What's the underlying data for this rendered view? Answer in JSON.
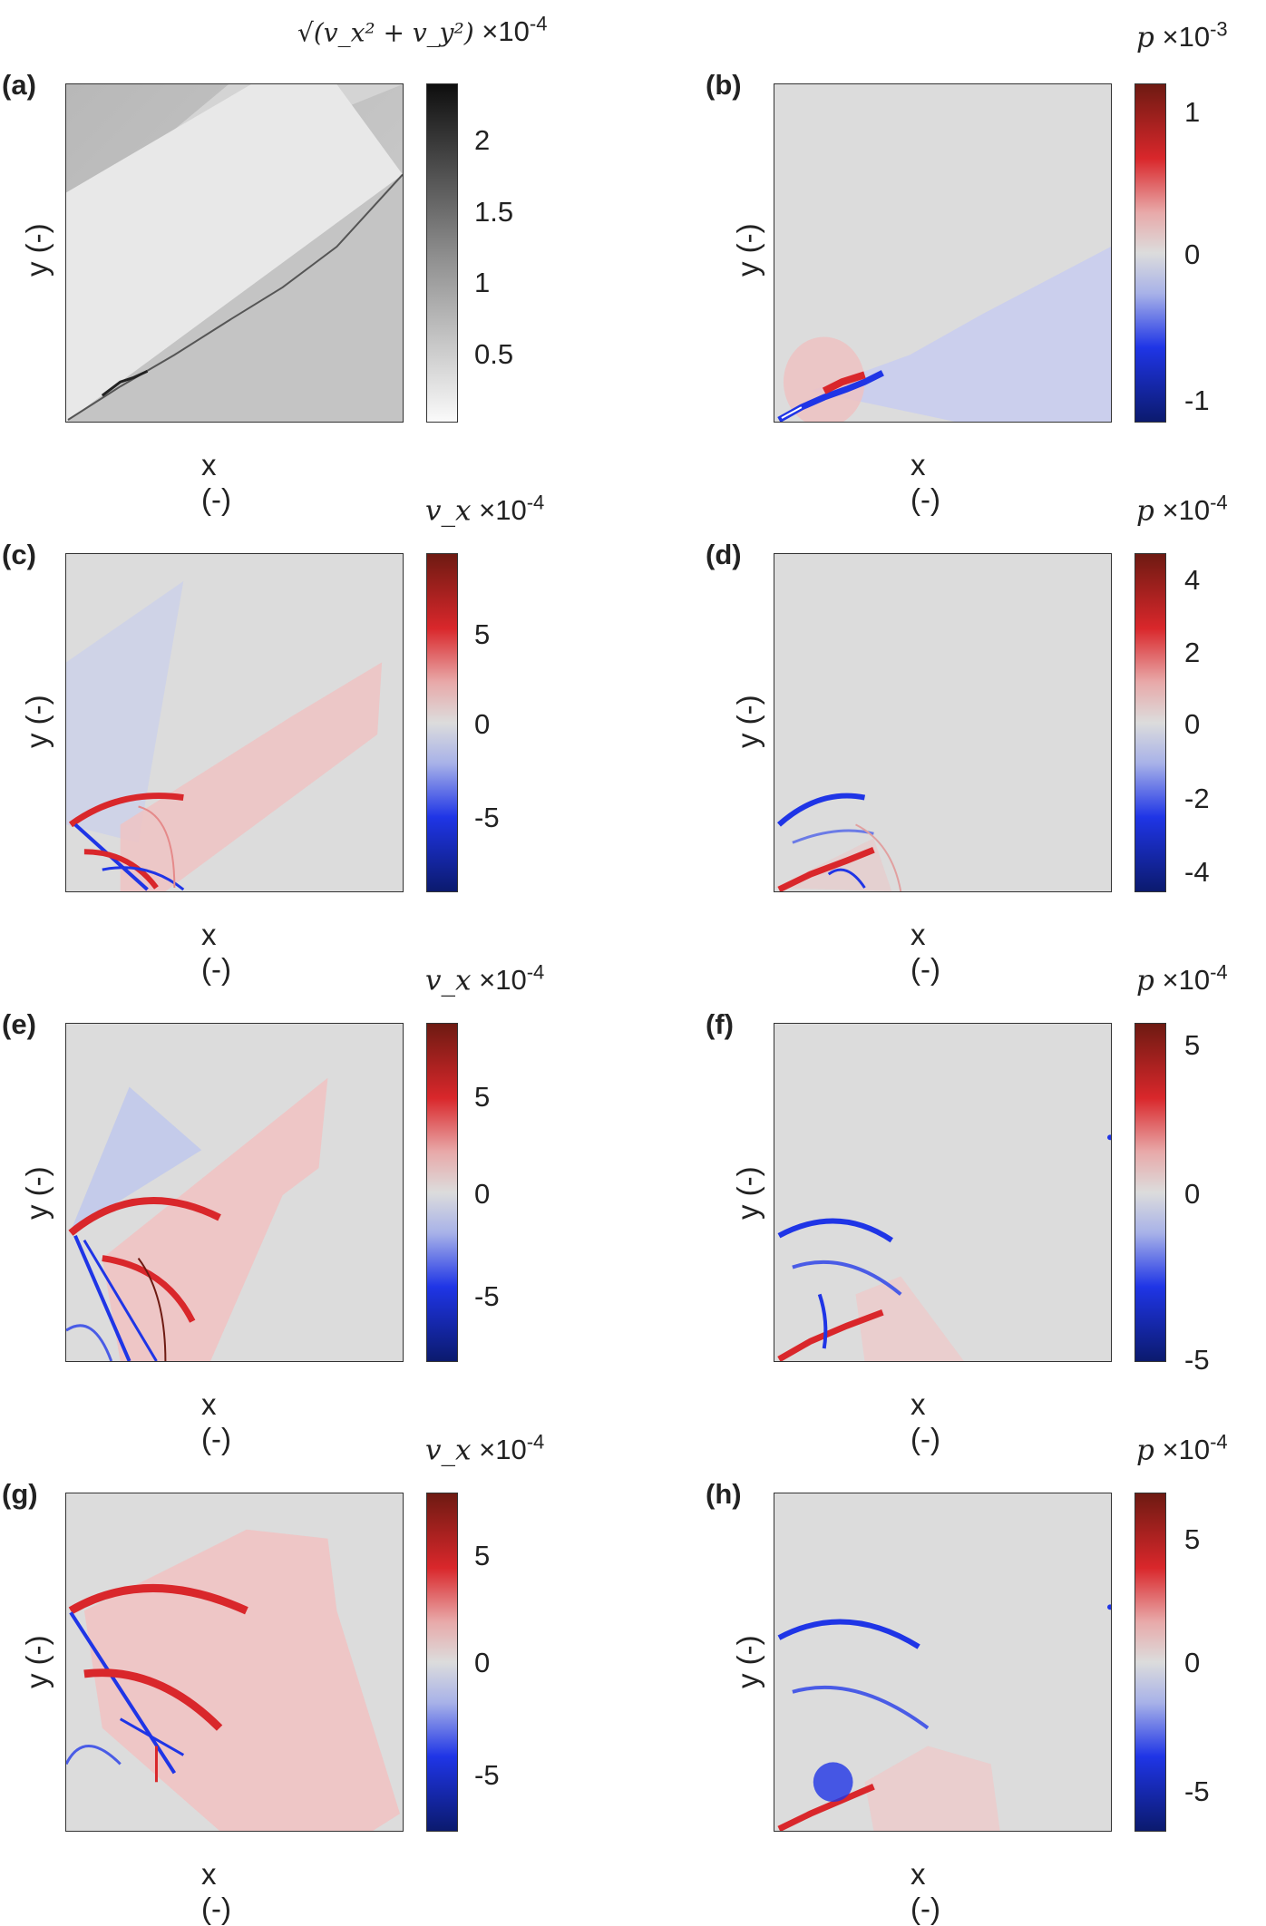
{
  "figure": {
    "x_axis_label": "x (-)",
    "y_axis_label": "y (-)",
    "panels": [
      {
        "id": "a",
        "label": "(a)",
        "colormap": "gray",
        "colorbar_title_var": "√(v_x² + v_y²)",
        "colorbar_title_exp": "×10",
        "colorbar_title_pow": "-4",
        "ticks": [
          "2",
          "1.5",
          "1",
          "0.5"
        ]
      },
      {
        "id": "b",
        "label": "(b)",
        "colormap": "diverging",
        "colorbar_title_var": "p",
        "colorbar_title_exp": "×10",
        "colorbar_title_pow": "-3",
        "ticks": [
          "1",
          "0",
          "-1"
        ]
      },
      {
        "id": "c",
        "label": "(c)",
        "colormap": "diverging",
        "colorbar_title_var": "v_x",
        "colorbar_title_exp": "×10",
        "colorbar_title_pow": "-4",
        "ticks": [
          "5",
          "0",
          "-5"
        ]
      },
      {
        "id": "d",
        "label": "(d)",
        "colormap": "diverging",
        "colorbar_title_var": "p",
        "colorbar_title_exp": "×10",
        "colorbar_title_pow": "-4",
        "ticks": [
          "4",
          "2",
          "0",
          "-2",
          "-4"
        ]
      },
      {
        "id": "e",
        "label": "(e)",
        "colormap": "diverging",
        "colorbar_title_var": "v_x",
        "colorbar_title_exp": "×10",
        "colorbar_title_pow": "-4",
        "ticks": [
          "5",
          "0",
          "-5"
        ]
      },
      {
        "id": "f",
        "label": "(f)",
        "colormap": "diverging",
        "colorbar_title_var": "p",
        "colorbar_title_exp": "×10",
        "colorbar_title_pow": "-4",
        "ticks": [
          "5",
          "0",
          "-5"
        ]
      },
      {
        "id": "g",
        "label": "(g)",
        "colormap": "diverging",
        "colorbar_title_var": "v_x",
        "colorbar_title_exp": "×10",
        "colorbar_title_pow": "-4",
        "ticks": [
          "5",
          "0",
          "-5"
        ]
      },
      {
        "id": "h",
        "label": "(h)",
        "colormap": "diverging",
        "colorbar_title_var": "p",
        "colorbar_title_exp": "×10",
        "colorbar_title_pow": "-4",
        "ticks": [
          "5",
          "0",
          "-5"
        ]
      }
    ],
    "colors": {
      "diverging": [
        "#6e1a12",
        "#d9272b",
        "#e8a9a9",
        "#dcdcdc",
        "#a8b2e8",
        "#1f35e6",
        "#0b1a6e"
      ],
      "gray": [
        "#111111",
        "#888888",
        "#f8f8f8"
      ]
    }
  }
}
